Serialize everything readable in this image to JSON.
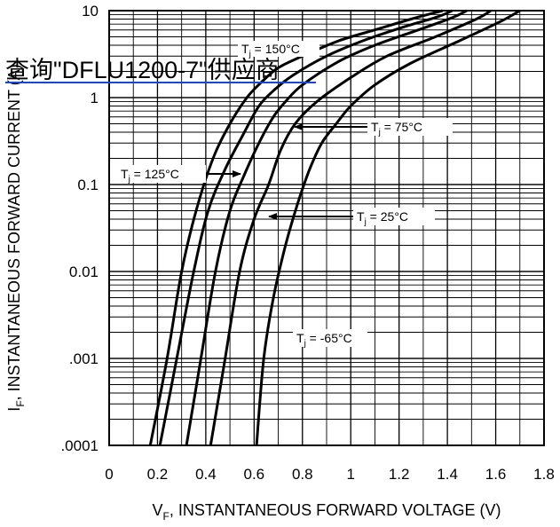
{
  "watermark": "查询\"DFLU1200-7\"供应商",
  "chart_data": {
    "type": "line",
    "title": "",
    "xlabel": {
      "main": "V",
      "sub": "F",
      "rest": ", INSTANTANEOUS FORWARD VOLTAGE (V)"
    },
    "ylabel": {
      "main": "I",
      "sub": "F",
      "rest": ", INSTANTANEOUS FORWARD CURRENT (A)"
    },
    "x_scale": "linear",
    "y_scale": "log",
    "xlim": [
      0,
      1.8
    ],
    "ylim": [
      0.0001,
      10
    ],
    "x_ticks": [
      0,
      0.2,
      0.4,
      0.6,
      0.8,
      1.0,
      1.2,
      1.4,
      1.6,
      1.8
    ],
    "x_tick_labels": [
      "0",
      "0.2",
      "0.4",
      "0.6",
      "0.8",
      "1",
      "1.2",
      "1.4",
      "1.6",
      "1.8"
    ],
    "y_ticks": [
      0.0001,
      0.001,
      0.01,
      0.1,
      1,
      10
    ],
    "y_tick_labels": [
      ".0001",
      ".001",
      "0.01",
      "0.1",
      "1",
      "10"
    ],
    "grid": true,
    "legend": "none",
    "series": [
      {
        "name": "T_j = 150°C",
        "x": [
          0.17,
          0.24,
          0.3,
          0.36,
          0.43,
          0.5,
          0.57,
          0.63,
          0.7,
          0.8,
          0.95,
          1.1,
          1.25,
          1.38
        ],
        "y": [
          0.0001,
          0.001,
          0.01,
          0.05,
          0.2,
          0.5,
          1.0,
          1.5,
          2.2,
          3.0,
          4.5,
          6.0,
          8.0,
          10
        ]
      },
      {
        "name": "T_j = 125°C",
        "x": [
          0.21,
          0.28,
          0.35,
          0.41,
          0.48,
          0.56,
          0.62,
          0.68,
          0.76,
          0.9,
          1.05,
          1.22,
          1.36,
          1.42
        ],
        "y": [
          0.0001,
          0.001,
          0.01,
          0.05,
          0.15,
          0.4,
          0.8,
          1.2,
          1.8,
          3.0,
          4.5,
          6.5,
          8.5,
          10
        ]
      },
      {
        "name": "T_j = 75°C",
        "x": [
          0.32,
          0.38,
          0.44,
          0.5,
          0.56,
          0.62,
          0.68,
          0.73,
          0.8,
          0.95,
          1.1,
          1.28,
          1.42,
          1.48
        ],
        "y": [
          0.0001,
          0.001,
          0.01,
          0.05,
          0.13,
          0.3,
          0.6,
          0.9,
          1.4,
          2.6,
          4.0,
          6.0,
          8.3,
          10
        ]
      },
      {
        "name": "T_j = 25°C",
        "x": [
          0.42,
          0.48,
          0.54,
          0.6,
          0.66,
          0.71,
          0.77,
          0.86,
          1.0,
          1.15,
          1.35,
          1.52,
          1.58
        ],
        "y": [
          0.0001,
          0.001,
          0.01,
          0.04,
          0.1,
          0.25,
          0.5,
          0.9,
          1.7,
          3.0,
          5.0,
          8.0,
          10
        ]
      },
      {
        "name": "T_j = -65°C",
        "x": [
          0.61,
          0.64,
          0.68,
          0.73,
          0.78,
          0.83,
          0.88,
          0.94,
          1.0,
          1.1,
          1.25,
          1.45,
          1.62,
          1.7
        ],
        "y": [
          0.0001,
          0.001,
          0.005,
          0.02,
          0.06,
          0.15,
          0.3,
          0.5,
          0.8,
          1.4,
          2.5,
          4.5,
          7.5,
          10
        ]
      }
    ],
    "annotations": [
      {
        "main": "T",
        "sub": "j",
        "rest": " = 150°C"
      },
      {
        "main": "T",
        "sub": "j",
        "rest": " = 75°C"
      },
      {
        "main": "T",
        "sub": "j",
        "rest": " = 125°C"
      },
      {
        "main": "T",
        "sub": "j",
        "rest": " = 25°C"
      },
      {
        "main": "T",
        "sub": "j",
        "rest": " = -65°C"
      }
    ]
  }
}
